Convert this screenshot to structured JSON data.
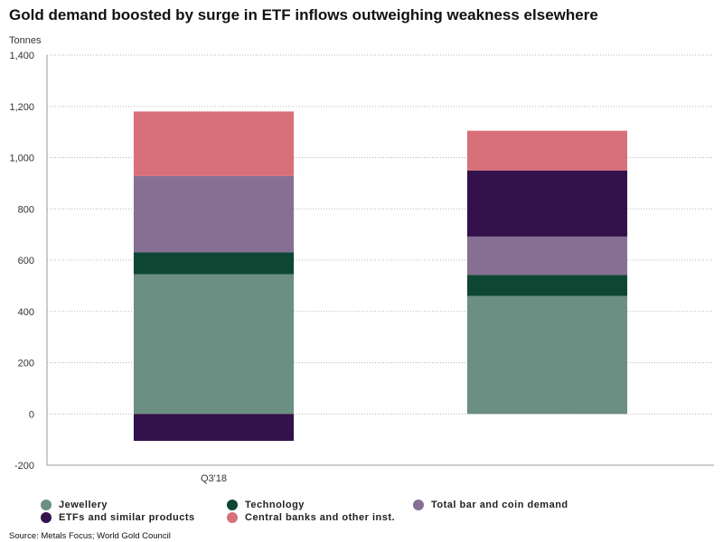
{
  "chart_data": {
    "type": "bar",
    "stacked": true,
    "title": "Gold demand boosted by surge in ETF inflows outweighing weakness elsewhere",
    "ylabel": "Tonnes",
    "categories": [
      "Q3'18",
      ""
    ],
    "ylim": [
      -200,
      1400
    ],
    "yticks": [
      -200,
      0,
      200,
      400,
      600,
      800,
      1000,
      1200,
      1400
    ],
    "ytick_labels": [
      "-200",
      "0",
      "200",
      "400",
      "600",
      "800",
      "1,000",
      "1,200",
      "1,400"
    ],
    "grid": true,
    "legend_position": "bottom",
    "series": [
      {
        "name": "Jewellery",
        "color": "#6b8f82",
        "values": [
          545,
          460
        ]
      },
      {
        "name": "Technology",
        "color": "#0e4634",
        "values": [
          85,
          82
        ]
      },
      {
        "name": "Total bar and coin demand",
        "color": "#857093",
        "values": [
          298,
          150
        ]
      },
      {
        "name": "ETFs and similar products",
        "color": "#33124b",
        "values": [
          -105,
          258
        ]
      },
      {
        "name": "Central banks and other inst.",
        "color": "#d8707b",
        "values": [
          252,
          155
        ]
      }
    ],
    "source": "Source: Metals Focus; World Gold Council"
  }
}
